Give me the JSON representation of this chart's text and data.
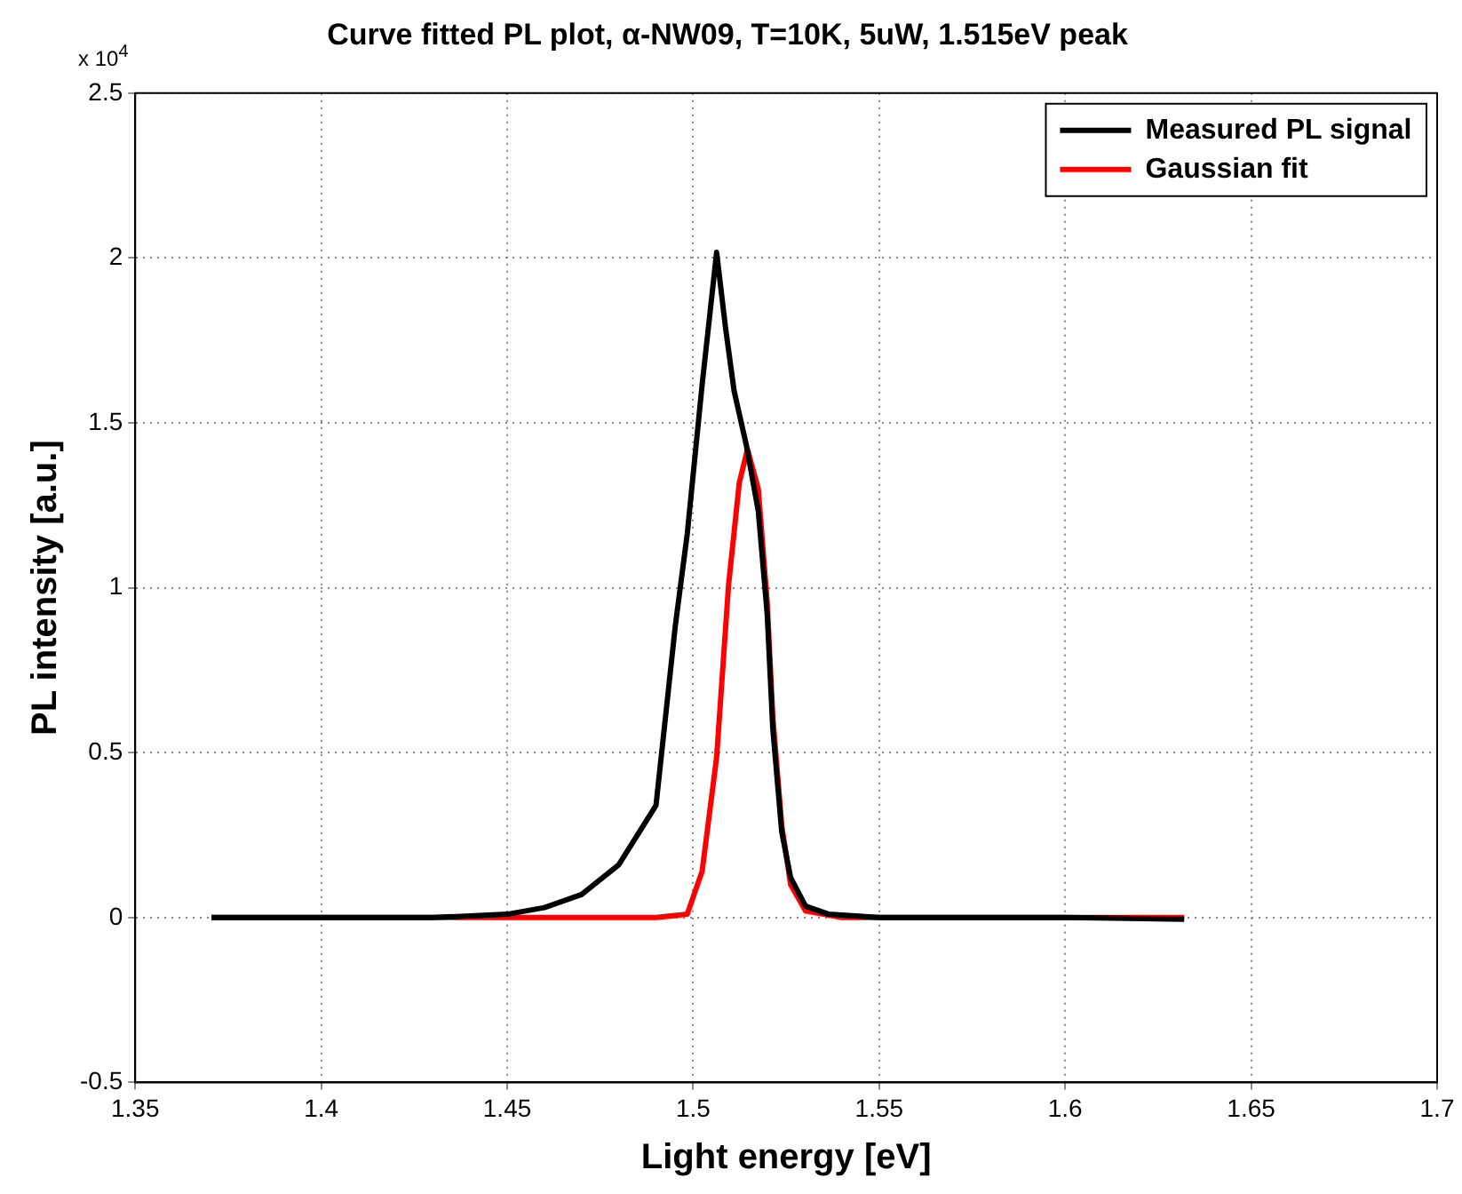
{
  "chart_data": {
    "type": "line",
    "title": "Curve fitted PL plot, α-NW09, T=10K, 5uW, 1.515eV peak",
    "xlabel": "Light energy [eV]",
    "ylabel": "PL intensity [a.u.]",
    "annotations": [
      "x 10$^{4}$"
    ],
    "series": [
      {
        "name": "Measured PL signal",
        "color": "#000000",
        "x": [
          1.3705,
          1.4,
          1.43,
          1.45,
          1.46,
          1.47,
          1.48,
          1.49,
          1.4952,
          1.4984,
          1.5024,
          1.5063,
          1.5087,
          1.511,
          1.5143,
          1.5175,
          1.5199,
          1.5214,
          1.5238,
          1.5262,
          1.5302,
          1.5365,
          1.55,
          1.6,
          1.632
        ],
        "values": [
          0,
          0,
          0,
          0.01,
          0.03,
          0.07,
          0.16,
          0.34,
          0.885,
          1.163,
          1.615,
          2.017,
          1.788,
          1.597,
          1.432,
          1.233,
          0.92,
          0.573,
          0.26,
          0.121,
          0.035,
          0.01,
          0,
          0,
          -0.005
        ]
      },
      {
        "name": "Gaussian fit",
        "color": "#ff0000",
        "x": [
          1.3705,
          1.45,
          1.49,
          1.4984,
          1.5024,
          1.5063,
          1.5095,
          1.5124,
          1.5146,
          1.5175,
          1.5199,
          1.5214,
          1.5238,
          1.5262,
          1.5302,
          1.54,
          1.6,
          1.632
        ],
        "values": [
          0,
          0,
          0,
          0.01,
          0.14,
          0.486,
          1.007,
          1.319,
          1.42,
          1.3,
          0.955,
          0.61,
          0.28,
          0.1,
          0.02,
          0,
          0,
          0
        ]
      }
    ],
    "xlim": [
      1.35,
      1.7
    ],
    "xticks": [
      1.35,
      1.4,
      1.45,
      1.5,
      1.55,
      1.6,
      1.65,
      1.7
    ],
    "ylim": [
      -0.5,
      2.5
    ],
    "yticks": [
      -0.5,
      0,
      0.5,
      1,
      1.5,
      2,
      2.5
    ],
    "grid": true,
    "legend": "top right",
    "marker": "none",
    "line_style": "solid"
  }
}
